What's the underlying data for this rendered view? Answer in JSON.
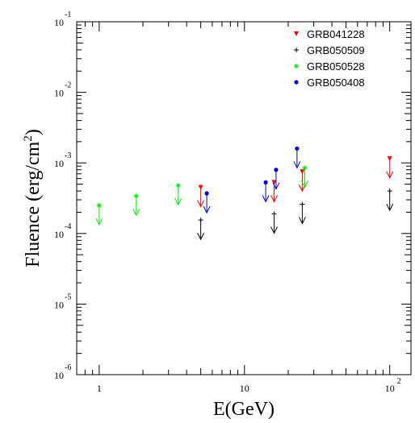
{
  "chart_data": {
    "type": "scatter",
    "title": "",
    "xlabel": "E(GeV)",
    "ylabel": "Fluence (erg/cm2)",
    "x_scale": "log",
    "y_scale": "log",
    "xlim": [
      0.7,
      140
    ],
    "ylim": [
      1e-06,
      0.1
    ],
    "grid": false,
    "legend_position": "top-right",
    "x_ticks": [
      {
        "value": 1,
        "base": "1",
        "exp": ""
      },
      {
        "value": 10,
        "base": "10",
        "exp": ""
      },
      {
        "value": 100,
        "base": "10",
        "exp": "2"
      }
    ],
    "y_ticks": [
      {
        "value": 1e-06,
        "base": "10",
        "exp": "-6"
      },
      {
        "value": 1e-05,
        "base": "10",
        "exp": "-5"
      },
      {
        "value": 0.0001,
        "base": "10",
        "exp": "-4"
      },
      {
        "value": 0.001,
        "base": "10",
        "exp": "-3"
      },
      {
        "value": 0.01,
        "base": "10",
        "exp": "-2"
      },
      {
        "value": 0.1,
        "base": "10",
        "exp": "-1"
      }
    ],
    "series": [
      {
        "name": "GRB041228",
        "color": "#ff0000",
        "marker": "triangle-down",
        "x": [
          5,
          16,
          25,
          100
        ],
        "y": [
          0.00045,
          0.00053,
          0.00075,
          0.00115
        ]
      },
      {
        "name": "GRB050509",
        "color": "#000000",
        "marker": "plus",
        "x": [
          5,
          16,
          25,
          100
        ],
        "y": [
          0.000155,
          0.00019,
          0.00026,
          0.0004
        ]
      },
      {
        "name": "GRB050528",
        "color": "#00ee00",
        "marker": "star",
        "x": [
          1,
          1.8,
          3.5,
          26
        ],
        "y": [
          0.00025,
          0.00034,
          0.00048,
          0.00085
        ]
      },
      {
        "name": "GRB050408",
        "color": "#0000dd",
        "marker": "circle",
        "x": [
          5.5,
          14,
          16.5,
          23
        ],
        "y": [
          0.00037,
          0.00053,
          0.0008,
          0.0016
        ]
      }
    ]
  }
}
